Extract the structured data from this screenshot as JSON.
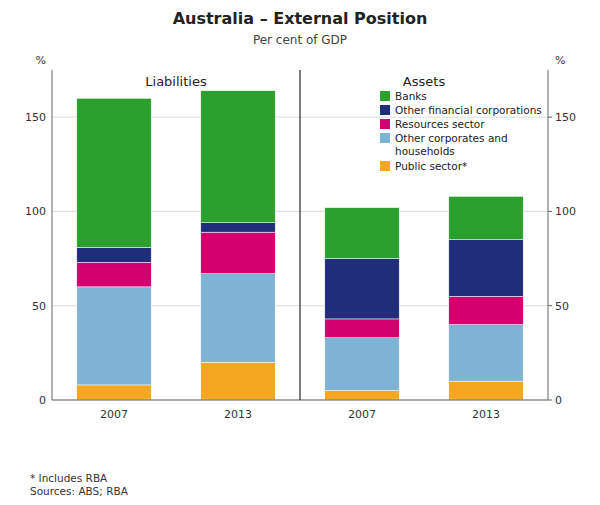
{
  "chart_data": {
    "type": "bar",
    "stacked": true,
    "title": "Australia – External Position",
    "subtitle": "Per cent of GDP",
    "annotations": [
      "Liabilities",
      "Assets"
    ],
    "y_label": "%",
    "y2_label": "%",
    "footnote": "*  Includes RBA\nSources: ABS; RBA",
    "categories": [
      "2007",
      "2013",
      "2007",
      "2013"
    ],
    "series": [
      {
        "name": "Public sector*",
        "color": "#f5a623",
        "values": [
          8,
          20,
          5,
          10
        ]
      },
      {
        "name": "Other corporates and\nhouseholds",
        "color": "#7fb3d3",
        "values": [
          52,
          47,
          28,
          30
        ]
      },
      {
        "name": "Resources sector",
        "color": "#d4006e",
        "values": [
          13,
          22,
          10,
          15
        ]
      },
      {
        "name": "Other financial corporations",
        "color": "#1f2d7b",
        "values": [
          8,
          5,
          32,
          30
        ]
      },
      {
        "name": "Banks",
        "color": "#2ca02c",
        "values": [
          79,
          70,
          27,
          23
        ]
      }
    ],
    "ylim": [
      0,
      175
    ],
    "yticks": [
      0,
      50,
      100,
      150
    ],
    "y2lim": [
      0,
      175
    ],
    "y2ticks": [
      0,
      50,
      100,
      150
    ],
    "grid": true,
    "legend": "upper right"
  }
}
